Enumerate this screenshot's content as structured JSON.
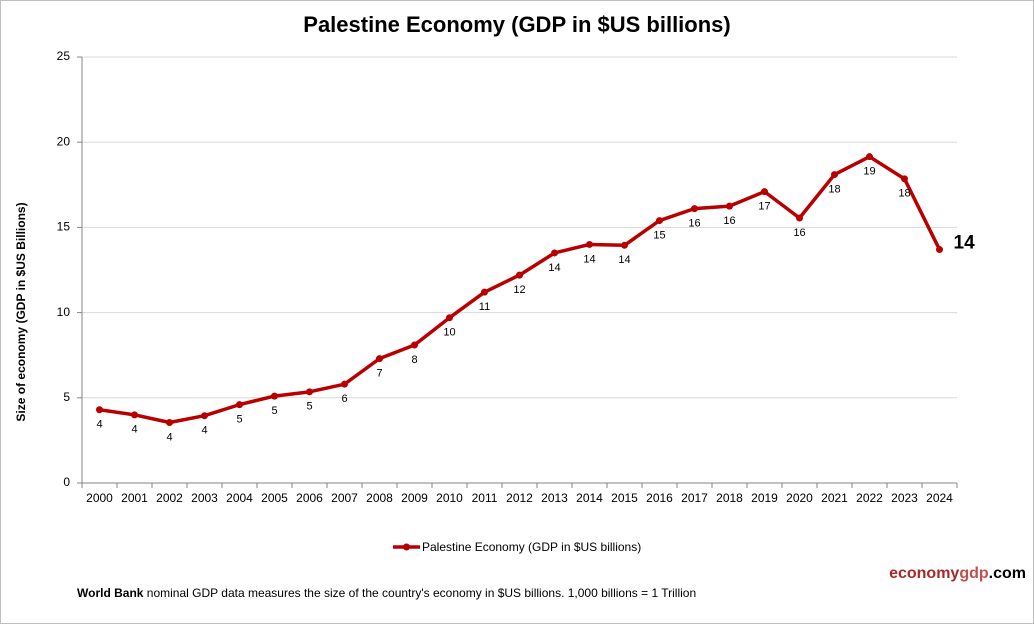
{
  "chart_data": {
    "type": "line",
    "title": "Palestine Economy (GDP in $US billions)",
    "y_label": "Size of economy (GDP in $US Billions)",
    "categories": [
      "2000",
      "2001",
      "2002",
      "2003",
      "2004",
      "2005",
      "2006",
      "2007",
      "2008",
      "2009",
      "2010",
      "2011",
      "2012",
      "2013",
      "2014",
      "2015",
      "2016",
      "2017",
      "2018",
      "2019",
      "2020",
      "2021",
      "2022",
      "2023",
      "2024"
    ],
    "series": [
      {
        "name": "Palestine Economy (GDP in $US billions)",
        "color": "#b90000",
        "values": [
          4.3,
          4.0,
          3.55,
          3.95,
          4.6,
          5.1,
          5.35,
          5.8,
          7.3,
          8.1,
          9.7,
          11.2,
          12.2,
          13.5,
          14.0,
          13.95,
          15.4,
          16.1,
          16.25,
          17.1,
          15.55,
          18.1,
          19.15,
          17.85,
          13.7
        ],
        "value_labels": [
          "4",
          "4",
          "4",
          "4",
          "5",
          "5",
          "5",
          "6",
          "7",
          "8",
          "10",
          "11",
          "12",
          "14",
          "14",
          "14",
          "15",
          "16",
          "16",
          "17",
          "16",
          "18",
          "19",
          "18",
          "14"
        ]
      }
    ],
    "ylim": [
      0,
      25
    ],
    "yticks": [
      0,
      5,
      10,
      15,
      20,
      25
    ],
    "grid": true,
    "legend": "bottom",
    "brand": [
      "economy",
      "gdp",
      ".com"
    ],
    "footnote": [
      "World Bank",
      " nominal GDP data  measures the size of the country's economy in $US billions. 1,000 billions = 1 Trillion"
    ]
  }
}
